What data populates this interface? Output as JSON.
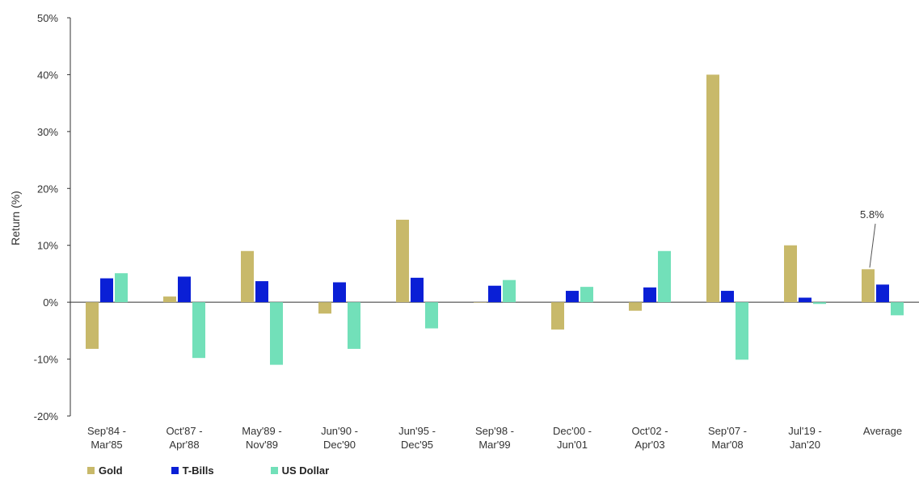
{
  "chart_data": {
    "type": "bar",
    "ylabel": "Return (%)",
    "ylim": [
      -20,
      50
    ],
    "yticks": [
      "-20%",
      "-10%",
      "0%",
      "10%",
      "20%",
      "30%",
      "40%",
      "50%"
    ],
    "ytick_values": [
      -20,
      -10,
      0,
      10,
      20,
      30,
      40,
      50
    ],
    "categories": [
      [
        "Sep'84 -",
        "Mar'85"
      ],
      [
        "Oct'87 -",
        "Apr'88"
      ],
      [
        "May'89 -",
        "Nov'89"
      ],
      [
        "Jun'90 -",
        "Dec'90"
      ],
      [
        "Jun'95 -",
        "Dec'95"
      ],
      [
        "Sep'98 -",
        "Mar'99"
      ],
      [
        "Dec'00 -",
        "Jun'01"
      ],
      [
        "Oct'02 -",
        "Apr'03"
      ],
      [
        "Sep'07 -",
        "Mar'08"
      ],
      [
        "Jul'19 -",
        "Jan'20"
      ],
      [
        "Average"
      ]
    ],
    "series": [
      {
        "name": "Gold",
        "color": "#c8b96a",
        "values": [
          -8.2,
          1.0,
          9.0,
          -2.0,
          14.5,
          0.0,
          -4.8,
          -1.5,
          40.0,
          10.0,
          5.8
        ]
      },
      {
        "name": "T-Bills",
        "color": "#0a1fd6",
        "values": [
          4.2,
          4.5,
          3.7,
          3.5,
          4.3,
          2.9,
          2.0,
          2.6,
          2.0,
          0.8,
          3.1
        ]
      },
      {
        "name": "US Dollar",
        "color": "#72e0b9",
        "values": [
          5.1,
          -9.8,
          -11.0,
          -8.2,
          -4.6,
          3.9,
          2.7,
          9.0,
          -10.1,
          -0.3,
          -2.3
        ]
      }
    ],
    "annotation": {
      "text": "5.8%",
      "category_index": 10,
      "series_index": 0
    },
    "grid": false,
    "legend_position": "bottom-left"
  }
}
